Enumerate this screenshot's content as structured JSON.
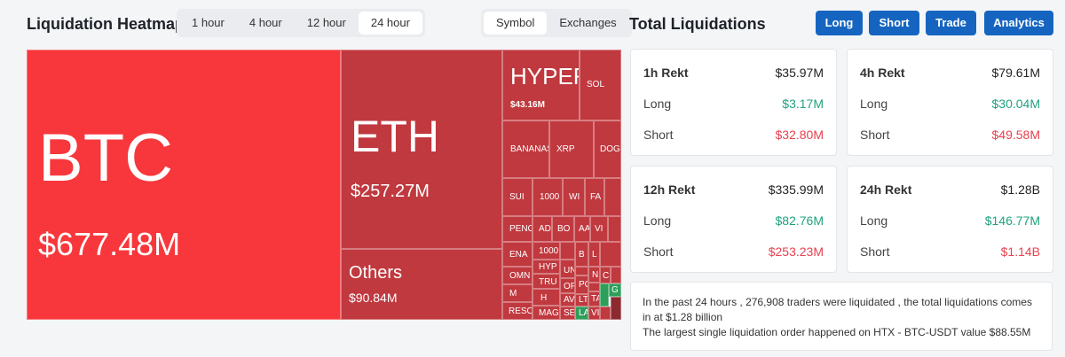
{
  "header": {
    "title": "Liquidation Heatmap",
    "time_tabs": [
      "1 hour",
      "4 hour",
      "12 hour",
      "24 hour"
    ],
    "active_time_tab": 3,
    "view_tabs": [
      "Symbol",
      "Exchanges"
    ],
    "active_view_tab": 0
  },
  "heatmap": {
    "tiles": [
      {
        "label": "BTC",
        "value": "$677.48M"
      },
      {
        "label": "ETH",
        "value": "$257.27M"
      },
      {
        "label": "Others",
        "value": "$90.84M"
      },
      {
        "label": "HYPER",
        "value": "$43.16M"
      },
      {
        "label": "SOL"
      },
      {
        "label": "BANANAS"
      },
      {
        "label": "XRP"
      },
      {
        "label": "DOGE"
      },
      {
        "label": "SUI"
      },
      {
        "label": "1000"
      },
      {
        "label": "WI"
      },
      {
        "label": "FA"
      },
      {
        "label": "PENG"
      },
      {
        "label": "AD"
      },
      {
        "label": "BO"
      },
      {
        "label": "AA"
      },
      {
        "label": "VI"
      },
      {
        "label": "ENA"
      },
      {
        "label": "1000"
      },
      {
        "label": "HYP"
      },
      {
        "label": "TRU"
      },
      {
        "label": "H"
      },
      {
        "label": "MAG"
      },
      {
        "label": "OMN"
      },
      {
        "label": "M"
      },
      {
        "label": "RESO"
      },
      {
        "label": "UN"
      },
      {
        "label": "OP"
      },
      {
        "label": "AV"
      },
      {
        "label": "SE"
      },
      {
        "label": "B"
      },
      {
        "label": "PO"
      },
      {
        "label": "LT"
      },
      {
        "label": "LA"
      },
      {
        "label": "L"
      },
      {
        "label": "N"
      },
      {
        "label": "TA"
      },
      {
        "label": "VI"
      },
      {
        "label": "C"
      },
      {
        "label": "G"
      }
    ]
  },
  "summary": {
    "title": "Total Liquidations",
    "buttons": [
      "Long",
      "Short",
      "Trade",
      "Analytics"
    ],
    "cards": [
      {
        "title": "1h Rekt",
        "total": "$35.97M",
        "long_label": "Long",
        "long": "$3.17M",
        "short_label": "Short",
        "short": "$32.80M"
      },
      {
        "title": "4h Rekt",
        "total": "$79.61M",
        "long_label": "Long",
        "long": "$30.04M",
        "short_label": "Short",
        "short": "$49.58M"
      },
      {
        "title": "12h Rekt",
        "total": "$335.99M",
        "long_label": "Long",
        "long": "$82.76M",
        "short_label": "Short",
        "short": "$253.23M"
      },
      {
        "title": "24h Rekt",
        "total": "$1.28B",
        "long_label": "Long",
        "long": "$146.77M",
        "short_label": "Short",
        "short": "$1.14B"
      }
    ],
    "note": [
      "In the past 24 hours , 276,908 traders were liquidated , the total liquidations comes in at $1.28 billion",
      "The largest single liquidation order happened on HTX - BTC-USDT value $88.55M"
    ]
  }
}
